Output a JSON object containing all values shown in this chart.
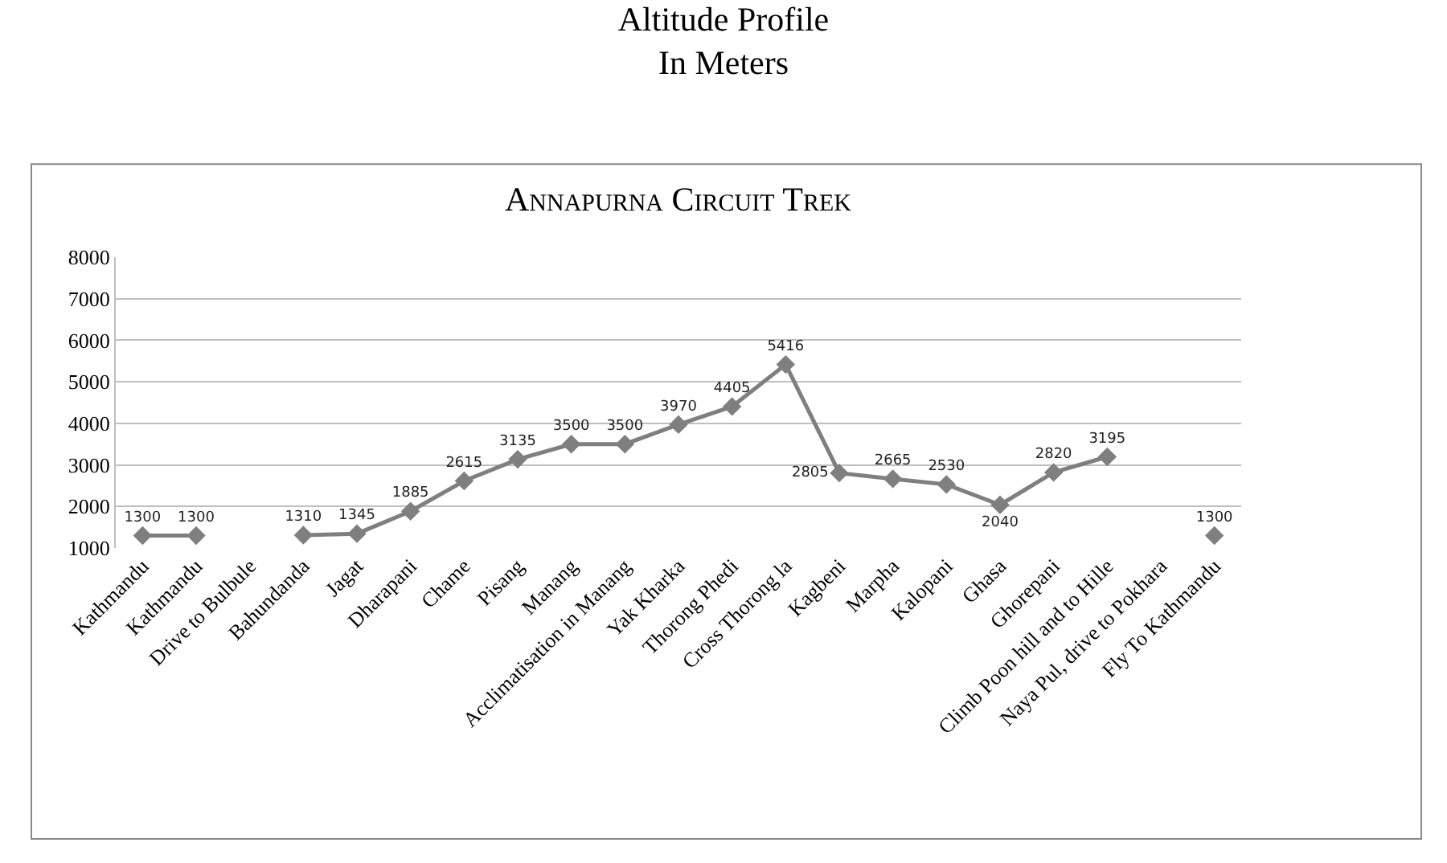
{
  "chart_data": {
    "type": "line",
    "title": "Altitude Profile\nIn Meters",
    "subtitle": "Annapurna Circuit Trek",
    "categories": [
      "Kathmandu",
      "Kathmandu",
      "Drive to Bulbule",
      "Bahundanda",
      "Jagat",
      "Dharapani",
      "Chame",
      "Pisang",
      "Manang",
      "Acclimatisation in Manang",
      "Yak Kharka",
      "Thorong Phedi",
      "Cross Thorong la",
      "Kagbeni",
      "Marpha",
      "Kalopani",
      "Ghasa",
      "Ghorepani",
      "Climb Poon hill and to Hille",
      "Naya Pul, drive to Pokhara",
      "Fly To Kathmandu"
    ],
    "series": [
      {
        "color": "#7f7f7f",
        "values": [
          1300,
          1300,
          null,
          1310,
          1345,
          1885,
          2615,
          3135,
          3500,
          3500,
          3970,
          4405,
          5416,
          2805,
          2665,
          2530,
          2040,
          2820,
          3195,
          null,
          1300
        ]
      }
    ],
    "data_labels": true,
    "ylim": [
      1000,
      8000
    ],
    "yticks": [
      1000,
      2000,
      3000,
      4000,
      5000,
      6000,
      7000,
      8000
    ],
    "grid": "y",
    "marker": "diamond",
    "line_style": "solid",
    "legend": false
  }
}
